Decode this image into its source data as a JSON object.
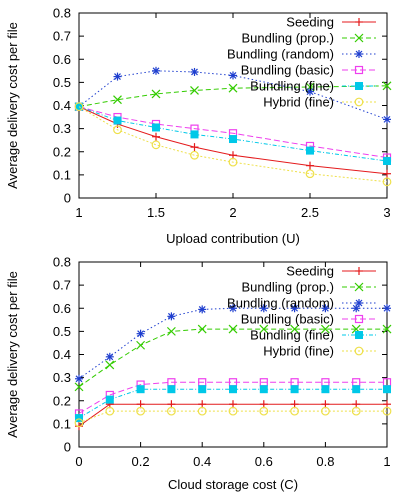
{
  "chart_data": [
    {
      "type": "line",
      "xlabel": "Upload contribution (U)",
      "ylabel": "Average delivery cost per file",
      "xlim": [
        1,
        3
      ],
      "ylim": [
        0,
        0.8
      ],
      "x_ticks": [
        1,
        1.5,
        2,
        2.5,
        3
      ],
      "x_tick_labels": [
        "1",
        "1.5",
        "2",
        "2.5",
        "3"
      ],
      "y_ticks": [
        0,
        0.1,
        0.2,
        0.3,
        0.4,
        0.5,
        0.6,
        0.7,
        0.8
      ],
      "y_tick_labels": [
        "0",
        "0.1",
        "0.2",
        "0.3",
        "0.4",
        "0.5",
        "0.6",
        "0.7",
        "0.8"
      ],
      "grid": false,
      "legend_position": "top-right",
      "series": [
        {
          "name": "Seeding",
          "color": "#e41a1c",
          "marker": "plus",
          "dash": "",
          "x": [
            1,
            1.25,
            1.5,
            1.75,
            2,
            2.5,
            3
          ],
          "y": [
            0.395,
            0.32,
            0.265,
            0.22,
            0.185,
            0.14,
            0.105
          ]
        },
        {
          "name": "Bundling (prop.)",
          "color": "#33cc00",
          "marker": "x",
          "dash": "5,3",
          "x": [
            1,
            1.25,
            1.5,
            1.75,
            2,
            2.5,
            3
          ],
          "y": [
            0.395,
            0.425,
            0.45,
            0.465,
            0.475,
            0.48,
            0.485
          ]
        },
        {
          "name": "Bundling (random)",
          "color": "#1f3fcf",
          "marker": "star",
          "dash": "1.5,2.5",
          "x": [
            1,
            1.25,
            1.5,
            1.75,
            2,
            2.5,
            3
          ],
          "y": [
            0.395,
            0.525,
            0.55,
            0.545,
            0.53,
            0.46,
            0.34
          ]
        },
        {
          "name": "Bundling (basic)",
          "color": "#ee3fee",
          "marker": "square-open",
          "dash": "6,3",
          "x": [
            1,
            1.25,
            1.5,
            1.75,
            2,
            2.5,
            3
          ],
          "y": [
            0.395,
            0.35,
            0.32,
            0.3,
            0.28,
            0.225,
            0.175
          ]
        },
        {
          "name": "Bundling (fine)",
          "color": "#00c8e8",
          "marker": "square-filled",
          "dash": "4,2,1,2",
          "x": [
            1,
            1.25,
            1.5,
            1.75,
            2,
            2.5,
            3
          ],
          "y": [
            0.395,
            0.335,
            0.305,
            0.275,
            0.255,
            0.205,
            0.16
          ]
        },
        {
          "name": "Hybrid (fine)",
          "color": "#eee04a",
          "marker": "circle-open",
          "dash": "2,2",
          "x": [
            1,
            1.25,
            1.5,
            1.75,
            2,
            2.5,
            3
          ],
          "y": [
            0.395,
            0.295,
            0.23,
            0.185,
            0.155,
            0.105,
            0.07
          ]
        }
      ]
    },
    {
      "type": "line",
      "xlabel": "Cloud storage cost (C)",
      "ylabel": "Average delivery cost per file",
      "xlim": [
        0,
        1
      ],
      "ylim": [
        0,
        0.8
      ],
      "x_ticks": [
        0,
        0.2,
        0.4,
        0.6,
        0.8,
        1
      ],
      "x_tick_labels": [
        "0",
        "0.2",
        "0.4",
        "0.6",
        "0.8",
        "1"
      ],
      "y_ticks": [
        0,
        0.1,
        0.2,
        0.3,
        0.4,
        0.5,
        0.6,
        0.7,
        0.8
      ],
      "y_tick_labels": [
        "0",
        "0.1",
        "0.2",
        "0.3",
        "0.4",
        "0.5",
        "0.6",
        "0.7",
        "0.8"
      ],
      "grid": false,
      "legend_position": "top-right",
      "series": [
        {
          "name": "Seeding",
          "color": "#e41a1c",
          "marker": "plus",
          "dash": "",
          "x": [
            0,
            0.1,
            0.2,
            0.3,
            0.4,
            0.5,
            0.6,
            0.7,
            0.8,
            0.9,
            1
          ],
          "y": [
            0.09,
            0.185,
            0.185,
            0.185,
            0.185,
            0.185,
            0.185,
            0.185,
            0.185,
            0.185,
            0.185
          ]
        },
        {
          "name": "Bundling (prop.)",
          "color": "#33cc00",
          "marker": "x",
          "dash": "5,3",
          "x": [
            0,
            0.1,
            0.2,
            0.3,
            0.4,
            0.5,
            0.6,
            0.7,
            0.8,
            0.9,
            1
          ],
          "y": [
            0.26,
            0.355,
            0.44,
            0.5,
            0.51,
            0.51,
            0.51,
            0.51,
            0.51,
            0.51,
            0.51
          ]
        },
        {
          "name": "Bundling (random)",
          "color": "#1f3fcf",
          "marker": "star",
          "dash": "1.5,2.5",
          "x": [
            0,
            0.1,
            0.2,
            0.3,
            0.4,
            0.5,
            0.6,
            0.7,
            0.8,
            0.9,
            1
          ],
          "y": [
            0.295,
            0.39,
            0.49,
            0.565,
            0.595,
            0.6,
            0.6,
            0.6,
            0.6,
            0.6,
            0.6
          ]
        },
        {
          "name": "Bundling (basic)",
          "color": "#ee3fee",
          "marker": "square-open",
          "dash": "6,3",
          "x": [
            0,
            0.1,
            0.2,
            0.3,
            0.4,
            0.5,
            0.6,
            0.7,
            0.8,
            0.9,
            1
          ],
          "y": [
            0.145,
            0.225,
            0.27,
            0.28,
            0.28,
            0.28,
            0.28,
            0.28,
            0.28,
            0.28,
            0.28
          ]
        },
        {
          "name": "Bundling (fine)",
          "color": "#00c8e8",
          "marker": "square-filled",
          "dash": "4,2,1,2",
          "x": [
            0,
            0.1,
            0.2,
            0.3,
            0.4,
            0.5,
            0.6,
            0.7,
            0.8,
            0.9,
            1
          ],
          "y": [
            0.125,
            0.205,
            0.25,
            0.25,
            0.25,
            0.25,
            0.25,
            0.25,
            0.25,
            0.25,
            0.25
          ]
        },
        {
          "name": "Hybrid (fine)",
          "color": "#eee04a",
          "marker": "circle-open",
          "dash": "2,2",
          "x": [
            0,
            0.1,
            0.2,
            0.3,
            0.4,
            0.5,
            0.6,
            0.7,
            0.8,
            0.9,
            1
          ],
          "y": [
            0.105,
            0.155,
            0.155,
            0.155,
            0.155,
            0.155,
            0.155,
            0.155,
            0.155,
            0.155,
            0.155
          ]
        }
      ]
    }
  ]
}
